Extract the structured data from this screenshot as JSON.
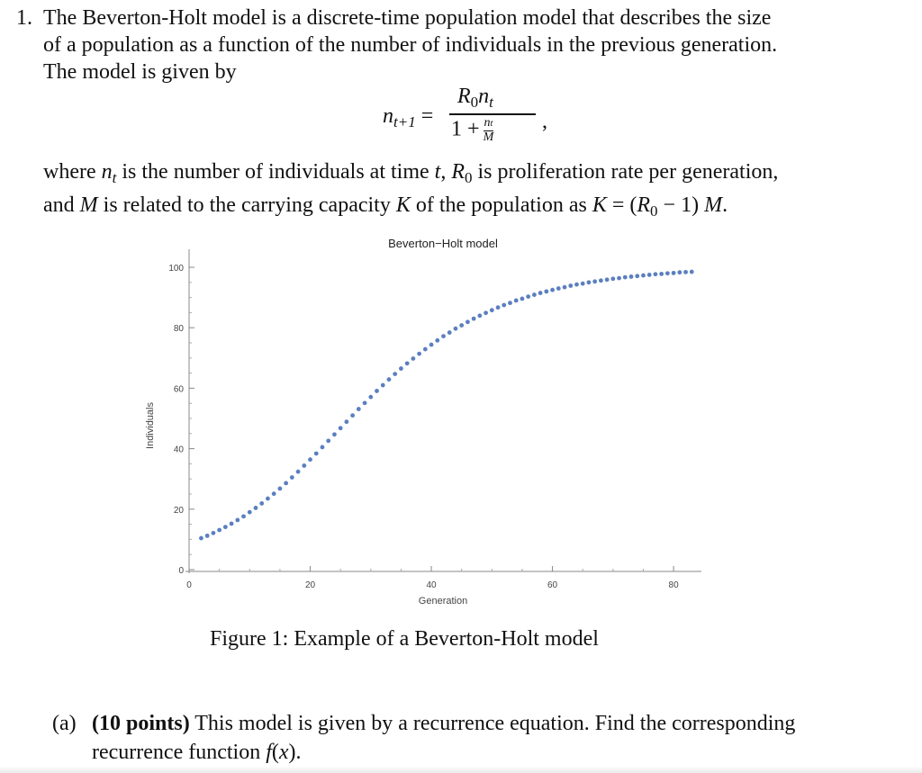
{
  "problem": {
    "number": "1.",
    "intro_lines": [
      "The Beverton-Holt model is a discrete-time population model that describes the size",
      "of a population as a function of the number of individuals in the previous generation.",
      "The model is given by"
    ]
  },
  "equation": {
    "lhs_var": "n",
    "lhs_sub": "t+1",
    "equals": "=",
    "num_r": "R",
    "num_r_sub": "0",
    "num_n": "n",
    "num_n_sub": "t",
    "den_one_plus": "1 +",
    "den_frac_top": "n",
    "den_frac_top_sub": "t",
    "den_frac_bottom": "M",
    "comma": ","
  },
  "where": {
    "l1_a": "where ",
    "l1_n": "n",
    "l1_nsub": "t",
    "l1_b": " is the number of individuals at time ",
    "l1_t": "t",
    "l1_c": ", ",
    "l1_R": "R",
    "l1_Rsub": "0",
    "l1_d": " is proliferation rate per generation,",
    "l2_a": "and ",
    "l2_M": "M",
    "l2_b": " is related to the carrying capacity ",
    "l2_K": "K",
    "l2_c": " of the population as ",
    "l2_formula_K": "K",
    "l2_formula_eq": " = (",
    "l2_formula_R": "R",
    "l2_formula_Rsub": "0",
    "l2_formula_tail": " − 1) ",
    "l2_formula_M": "M",
    "l2_end": "."
  },
  "chart_data": {
    "type": "scatter",
    "title": "Beverton−Holt model",
    "xlabel": "Generation",
    "ylabel": "Individuals",
    "xlim": [
      0,
      84
    ],
    "ylim": [
      0,
      100
    ],
    "xticks": [
      0,
      20,
      40,
      60,
      80
    ],
    "yticks": [
      0,
      20,
      40,
      60,
      80,
      100
    ],
    "color": "#5b7fbf",
    "x": [
      2,
      3,
      4,
      5,
      6,
      7,
      8,
      9,
      10,
      11,
      12,
      13,
      14,
      15,
      16,
      17,
      18,
      19,
      20,
      21,
      22,
      23,
      24,
      25,
      26,
      27,
      28,
      29,
      30,
      31,
      32,
      33,
      34,
      35,
      36,
      37,
      38,
      39,
      40,
      41,
      42,
      43,
      44,
      45,
      46,
      47,
      48,
      49,
      50,
      51,
      52,
      53,
      54,
      55,
      56,
      57,
      58,
      59,
      60,
      61,
      62,
      63,
      64,
      65,
      66,
      67,
      68,
      69,
      70,
      71,
      72,
      73,
      74,
      75,
      76,
      77,
      78,
      79,
      80,
      81,
      82,
      83
    ],
    "y": [
      10.4,
      11.2,
      12.1,
      13.1,
      14.1,
      15.2,
      16.4,
      17.6,
      19.0,
      20.4,
      21.9,
      23.5,
      25.1,
      26.8,
      28.6,
      30.5,
      32.4,
      34.4,
      36.4,
      38.4,
      40.5,
      42.6,
      44.7,
      46.8,
      48.9,
      51.0,
      53.1,
      55.1,
      57.1,
      59.1,
      61.0,
      62.9,
      64.7,
      66.5,
      68.2,
      69.8,
      71.4,
      72.9,
      74.4,
      75.8,
      77.2,
      78.4,
      79.7,
      80.8,
      81.9,
      83.0,
      84.0,
      84.9,
      85.8,
      86.7,
      87.5,
      88.2,
      89.0,
      89.6,
      90.3,
      90.9,
      91.5,
      92.0,
      92.5,
      93.0,
      93.4,
      93.9,
      94.3,
      94.6,
      95.0,
      95.3,
      95.6,
      95.9,
      96.2,
      96.4,
      96.7,
      96.9,
      97.1,
      97.3,
      97.5,
      97.7,
      97.8,
      98.0,
      98.1,
      98.3,
      98.4,
      98.5
    ]
  },
  "caption": "Figure 1: Example of a Beverton-Holt model",
  "part_a": {
    "label": "(a)",
    "points": "(10 points)",
    "text1": " This model is given by a recurrence equation. Find the corresponding",
    "text2a": "recurrence function ",
    "text2_f": "f",
    "text2_paren_open": "(",
    "text2_x": "x",
    "text2_paren_close": ")."
  }
}
